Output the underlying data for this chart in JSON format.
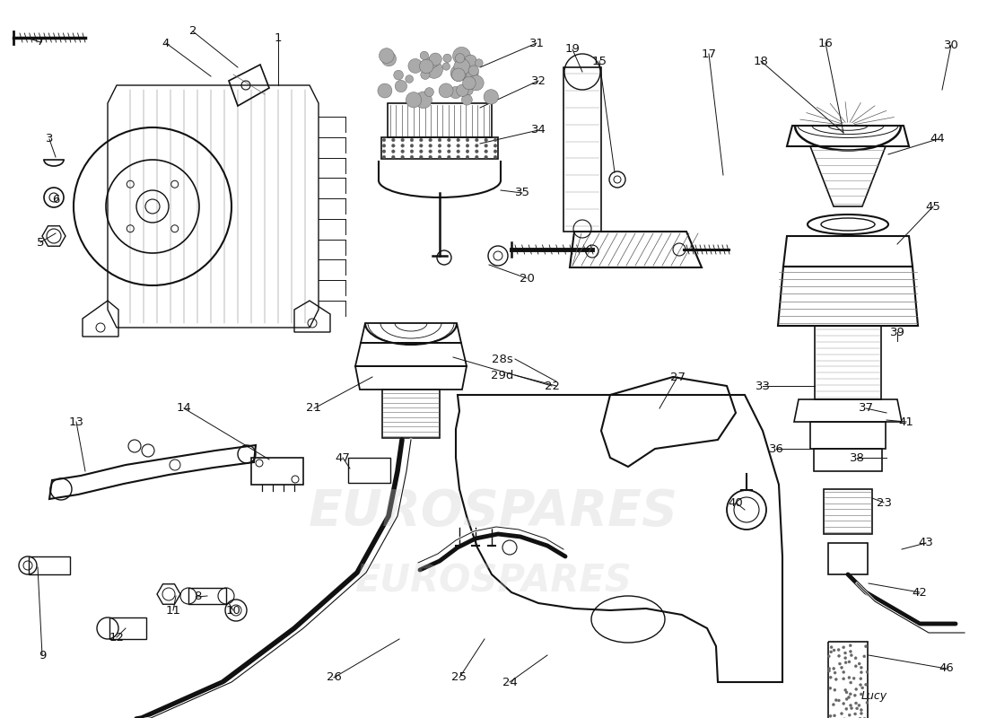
{
  "background_color": "#ffffff",
  "line_color": "#111111",
  "watermark_text": "eurospares",
  "signature": "Lucy",
  "fig_width": 11.0,
  "fig_height": 8.0
}
